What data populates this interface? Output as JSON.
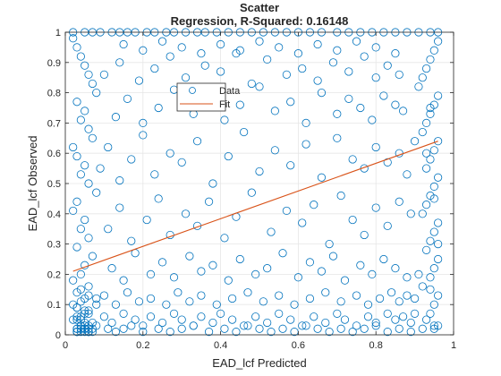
{
  "chart_data": {
    "type": "scatter",
    "title": "Scatter",
    "subtitle": "Regression, R-Squared: 0.16148",
    "xlabel": "EAD_lcf Predicted",
    "ylabel": "EAD_lcf Observed",
    "xlim": [
      0,
      1
    ],
    "ylim": [
      0,
      1
    ],
    "xticks": [
      "0",
      "0.2",
      "0.4",
      "0.6",
      "0.8",
      "1"
    ],
    "yticks": [
      "0",
      "0.1",
      "0.2",
      "0.3",
      "0.4",
      "0.5",
      "0.6",
      "0.7",
      "0.8",
      "0.9",
      "1"
    ],
    "grid": true,
    "legend": {
      "placement": "upper-middle",
      "entries": [
        "Data",
        "Fit"
      ]
    },
    "colors": {
      "data": "#0072BD",
      "fit": "#D95319"
    },
    "series": [
      {
        "name": "Data",
        "marker": "open-circle",
        "x": [
          0.02,
          0.05,
          0.07,
          0.09,
          0.12,
          0.14,
          0.16,
          0.18,
          0.21,
          0.23,
          0.26,
          0.28,
          0.31,
          0.34,
          0.36,
          0.39,
          0.42,
          0.45,
          0.48,
          0.51,
          0.54,
          0.57,
          0.6,
          0.63,
          0.66,
          0.7,
          0.73,
          0.76,
          0.79,
          0.82,
          0.85,
          0.88,
          0.91,
          0.94,
          0.96,
          0.03,
          0.04,
          0.06,
          0.08,
          0.11,
          0.13,
          0.15,
          0.17,
          0.2,
          0.24,
          0.27,
          0.3,
          0.33,
          0.37,
          0.41,
          0.44,
          0.47,
          0.5,
          0.53,
          0.56,
          0.59,
          0.62,
          0.65,
          0.68,
          0.71,
          0.74,
          0.77,
          0.8,
          0.83,
          0.86,
          0.89,
          0.92,
          0.95,
          0.02,
          0.03,
          0.04,
          0.05,
          0.06,
          0.07,
          0.08,
          0.03,
          0.05,
          0.04,
          0.06,
          0.07,
          0.02,
          0.03,
          0.05,
          0.04,
          0.06,
          0.08,
          0.03,
          0.02,
          0.05,
          0.04,
          0.06,
          0.03,
          0.07,
          0.05,
          0.04,
          0.02,
          0.06,
          0.03,
          0.05,
          0.04,
          0.08,
          0.03,
          0.06,
          0.05,
          0.04,
          0.02,
          0.07,
          0.03,
          0.05,
          0.04,
          0.06,
          0.03,
          0.05,
          0.08,
          0.04,
          0.02,
          0.06,
          0.03,
          0.96,
          0.95,
          0.94,
          0.93,
          0.92,
          0.91,
          0.96,
          0.95,
          0.94,
          0.93,
          0.92,
          0.96,
          0.95,
          0.94,
          0.93,
          0.96,
          0.95,
          0.94,
          0.93,
          0.92,
          0.96,
          0.95,
          0.94,
          0.93,
          0.96,
          0.95,
          0.94,
          0.92,
          0.96,
          0.95,
          0.94,
          0.93,
          0.96,
          0.95,
          0.94,
          0.91,
          0.96,
          0.95,
          0.93,
          0.94,
          0.1,
          0.12,
          0.15,
          0.18,
          0.2,
          0.22,
          0.25,
          0.28,
          0.3,
          0.33,
          0.35,
          0.38,
          0.4,
          0.43,
          0.46,
          0.49,
          0.52,
          0.55,
          0.58,
          0.61,
          0.64,
          0.67,
          0.7,
          0.72,
          0.75,
          0.78,
          0.8,
          0.83,
          0.85,
          0.87,
          0.89,
          0.9,
          0.1,
          0.13,
          0.16,
          0.19,
          0.22,
          0.26,
          0.29,
          0.32,
          0.35,
          0.39,
          0.43,
          0.47,
          0.51,
          0.55,
          0.59,
          0.63,
          0.67,
          0.71,
          0.75,
          0.78,
          0.81,
          0.84,
          0.86,
          0.88,
          0.9,
          0.12,
          0.15,
          0.18,
          0.22,
          0.25,
          0.28,
          0.32,
          0.35,
          0.38,
          0.42,
          0.45,
          0.49,
          0.52,
          0.56,
          0.6,
          0.63,
          0.66,
          0.69,
          0.72,
          0.76,
          0.79,
          0.82,
          0.85,
          0.88,
          0.11,
          0.14,
          0.17,
          0.21,
          0.24,
          0.27,
          0.31,
          0.34,
          0.37,
          0.41,
          0.44,
          0.48,
          0.53,
          0.57,
          0.61,
          0.64,
          0.68,
          0.71,
          0.74,
          0.77,
          0.8,
          0.83,
          0.86,
          0.89,
          0.09,
          0.11,
          0.14,
          0.17,
          0.2,
          0.23,
          0.27,
          0.3,
          0.34,
          0.38,
          0.42,
          0.46,
          0.5,
          0.54,
          0.58,
          0.62,
          0.66,
          0.7,
          0.74,
          0.77,
          0.8,
          0.83,
          0.86,
          0.88,
          0.9,
          0.13,
          0.16,
          0.2,
          0.24,
          0.28,
          0.33,
          0.37,
          0.41,
          0.45,
          0.5,
          0.54,
          0.58,
          0.62,
          0.66,
          0.7,
          0.73,
          0.76,
          0.79,
          0.82,
          0.85,
          0.87,
          0.1,
          0.14,
          0.19,
          0.23,
          0.27,
          0.31,
          0.36,
          0.4,
          0.44,
          0.48,
          0.52,
          0.57,
          0.61,
          0.65,
          0.69,
          0.73,
          0.77,
          0.8,
          0.83,
          0.86,
          0.15,
          0.2,
          0.25,
          0.3,
          0.35,
          0.4,
          0.45,
          0.5,
          0.55,
          0.6,
          0.65,
          0.7,
          0.75,
          0.8,
          0.85,
          0.04,
          0.05,
          0.03,
          0.06,
          0.04,
          0.05,
          0.03,
          0.06,
          0.04,
          0.05,
          0.07,
          0.03,
          0.06,
          0.04,
          0.05,
          0.03,
          0.07,
          0.04,
          0.06,
          0.05
        ],
        "y": [
          1,
          1,
          1,
          1,
          1,
          1,
          1,
          1,
          1,
          1,
          1,
          1,
          1,
          1,
          1,
          1,
          1,
          1,
          1,
          1,
          1,
          1,
          1,
          1,
          1,
          1,
          1,
          1,
          1,
          1,
          1,
          1,
          1,
          1,
          1,
          0.01,
          0.02,
          0.01,
          0.03,
          0.02,
          0.01,
          0.02,
          0.03,
          0.01,
          0.02,
          0.01,
          0.02,
          0.03,
          0.01,
          0.02,
          0.01,
          0.03,
          0.02,
          0.01,
          0.02,
          0.01,
          0.03,
          0.02,
          0.01,
          0.02,
          0.01,
          0.02,
          0.03,
          0.01,
          0.02,
          0.01,
          0.02,
          0.03,
          0.98,
          0.95,
          0.92,
          0.89,
          0.86,
          0.83,
          0.8,
          0.77,
          0.74,
          0.71,
          0.68,
          0.65,
          0.62,
          0.59,
          0.56,
          0.53,
          0.5,
          0.47,
          0.44,
          0.41,
          0.38,
          0.35,
          0.32,
          0.29,
          0.26,
          0.23,
          0.2,
          0.18,
          0.16,
          0.14,
          0.12,
          0.11,
          0.1,
          0.09,
          0.08,
          0.07,
          0.06,
          0.05,
          0.04,
          0.06,
          0.08,
          0.05,
          0.07,
          0.09,
          0.04,
          0.12,
          0.15,
          0.1,
          0.13,
          0.05,
          0.97,
          0.94,
          0.91,
          0.88,
          0.85,
          0.82,
          0.79,
          0.76,
          0.73,
          0.7,
          0.67,
          0.64,
          0.61,
          0.58,
          0.55,
          0.52,
          0.49,
          0.46,
          0.43,
          0.4,
          0.37,
          0.34,
          0.31,
          0.28,
          0.25,
          0.22,
          0.19,
          0.16,
          0.13,
          0.1,
          0.07,
          0.05,
          0.03,
          0.02,
          0.15,
          0.2,
          0.3,
          0.45,
          0.6,
          0.75,
          0.06,
          0.04,
          0.07,
          0.05,
          0.03,
          0.06,
          0.04,
          0.07,
          0.05,
          0.03,
          0.06,
          0.04,
          0.07,
          0.05,
          0.03,
          0.06,
          0.04,
          0.07,
          0.05,
          0.03,
          0.06,
          0.04,
          0.07,
          0.05,
          0.03,
          0.06,
          0.04,
          0.07,
          0.05,
          0.06,
          0.04,
          0.07,
          0.13,
          0.1,
          0.14,
          0.11,
          0.12,
          0.1,
          0.14,
          0.11,
          0.13,
          0.1,
          0.12,
          0.14,
          0.11,
          0.13,
          0.1,
          0.12,
          0.14,
          0.11,
          0.13,
          0.1,
          0.12,
          0.14,
          0.11,
          0.13,
          0.12,
          0.22,
          0.18,
          0.27,
          0.2,
          0.24,
          0.19,
          0.26,
          0.21,
          0.23,
          0.18,
          0.25,
          0.2,
          0.22,
          0.27,
          0.19,
          0.24,
          0.21,
          0.26,
          0.18,
          0.23,
          0.2,
          0.25,
          0.22,
          0.19,
          0.35,
          0.42,
          0.31,
          0.38,
          0.45,
          0.33,
          0.4,
          0.36,
          0.44,
          0.32,
          0.39,
          0.47,
          0.34,
          0.41,
          0.37,
          0.43,
          0.3,
          0.46,
          0.38,
          0.33,
          0.42,
          0.36,
          0.44,
          0.4,
          0.55,
          0.62,
          0.51,
          0.58,
          0.66,
          0.53,
          0.6,
          0.57,
          0.64,
          0.5,
          0.59,
          0.67,
          0.54,
          0.61,
          0.56,
          0.63,
          0.52,
          0.65,
          0.58,
          0.55,
          0.62,
          0.57,
          0.6,
          0.53,
          0.64,
          0.72,
          0.78,
          0.7,
          0.75,
          0.81,
          0.73,
          0.79,
          0.71,
          0.76,
          0.82,
          0.74,
          0.77,
          0.7,
          0.8,
          0.73,
          0.78,
          0.75,
          0.71,
          0.79,
          0.76,
          0.74,
          0.86,
          0.9,
          0.84,
          0.88,
          0.92,
          0.85,
          0.89,
          0.87,
          0.93,
          0.83,
          0.91,
          0.86,
          0.88,
          0.84,
          0.9,
          0.87,
          0.92,
          0.85,
          0.89,
          0.86,
          0.96,
          0.94,
          0.97,
          0.95,
          0.93,
          0.96,
          0.94,
          0.97,
          0.95,
          0.93,
          0.96,
          0.94,
          0.97,
          0.95,
          0.93,
          0.02,
          0.03,
          0.01,
          0.02,
          0.03,
          0.01,
          0.02,
          0.01,
          0.03,
          0.02,
          0.01,
          0.02,
          0.03,
          0.01,
          0.02,
          0.01,
          0.02,
          0.03,
          0.01,
          0.02
        ]
      },
      {
        "name": "Fit",
        "type": "line",
        "x": [
          0.02,
          0.96
        ],
        "y": [
          0.21,
          0.64
        ]
      }
    ]
  }
}
